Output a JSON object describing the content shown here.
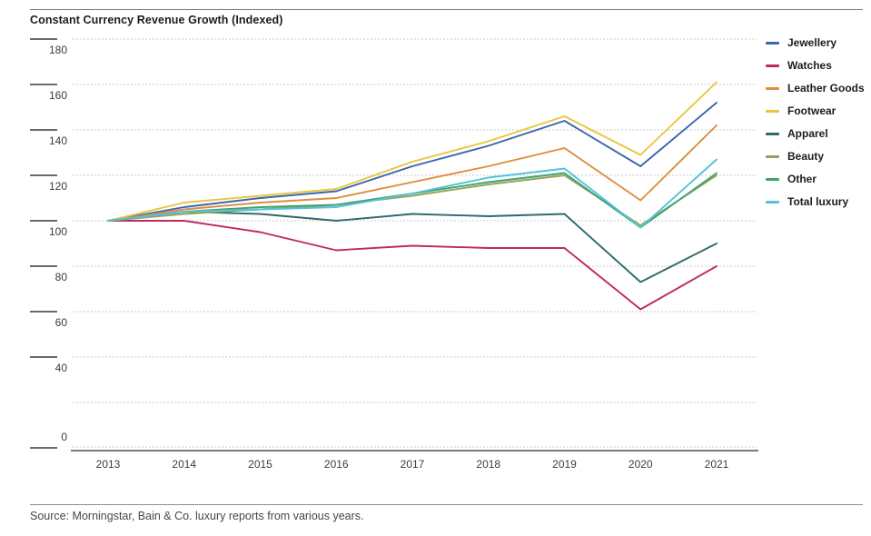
{
  "title": "Constant Currency Revenue Growth (Indexed)",
  "source_note": "Source: Morningstar, Bain & Co. luxury reports from various years.",
  "chart_data": {
    "type": "line",
    "title": "Constant Currency Revenue Growth (Indexed)",
    "xlabel": "",
    "ylabel": "",
    "x": [
      2013,
      2014,
      2015,
      2016,
      2017,
      2018,
      2019,
      2020,
      2021
    ],
    "ylim": [
      0,
      190
    ],
    "grid": "horizontal-dashed",
    "grid_values": [
      20,
      40,
      60,
      80,
      100,
      120,
      140,
      160,
      180
    ],
    "ytick_labels": [
      180,
      160,
      140,
      120,
      100,
      80,
      60,
      40,
      0
    ],
    "legend_position": "right",
    "series": [
      {
        "name": "Jewellery",
        "color": "#3A66AE",
        "values": [
          100,
          106,
          110,
          113,
          124,
          133,
          144,
          124,
          152
        ]
      },
      {
        "name": "Watches",
        "color": "#BE2A5F",
        "values": [
          100,
          100,
          95,
          87,
          89,
          88,
          88,
          61,
          80
        ]
      },
      {
        "name": "Leather Goods",
        "color": "#DE8C3F",
        "values": [
          100,
          105,
          108,
          110,
          117,
          124,
          132,
          109,
          142
        ]
      },
      {
        "name": "Footwear",
        "color": "#E9C63C",
        "values": [
          100,
          108,
          111,
          114,
          126,
          135,
          146,
          129,
          161
        ]
      },
      {
        "name": "Apparel",
        "color": "#2F6A6B",
        "values": [
          100,
          104,
          103,
          100,
          103,
          102,
          103,
          73,
          90
        ]
      },
      {
        "name": "Beauty",
        "color": "#94A45C",
        "values": [
          100,
          103,
          105,
          107,
          111,
          116,
          120,
          98,
          120
        ]
      },
      {
        "name": "Other",
        "color": "#3FA46C",
        "values": [
          100,
          104,
          106,
          107,
          112,
          117,
          121,
          97,
          121
        ]
      },
      {
        "name": "Total luxury",
        "color": "#55C1DE",
        "values": [
          100,
          104,
          105,
          106,
          112,
          119,
          123,
          97,
          127
        ]
      }
    ]
  }
}
